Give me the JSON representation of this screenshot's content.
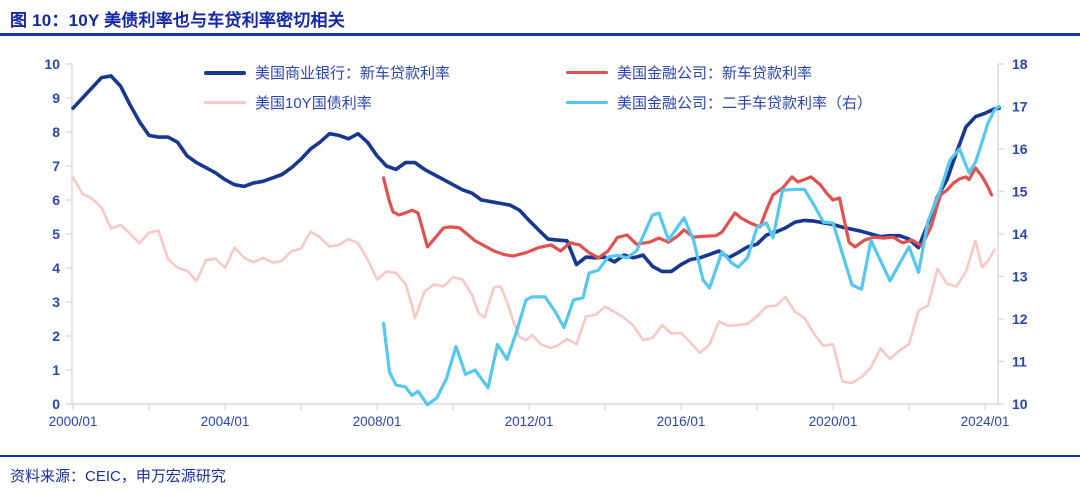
{
  "title": "图 10：10Y 美债利率也与车贷利率密切相关",
  "source": "资料来源：CEIC，申万宏源研究",
  "colors": {
    "title_text": "#1428a5",
    "rule": "#1634ad",
    "axis_line": "#d9d9d9",
    "axis_text": "#2946b0",
    "legend_text": "#2946b0",
    "series_bank_new_car": "#16388e",
    "series_finance_new_car": "#e05150",
    "series_treasury_10y": "#f8c9c4",
    "series_finance_used_car": "#55c8f2"
  },
  "chart_data": {
    "type": "line",
    "title": "图 10：10Y 美债利率也与车贷利率密切相关",
    "grid": false,
    "legend_position": "top",
    "x_axis": {
      "tick_labels": [
        "2000/01",
        "2004/01",
        "2008/01",
        "2012/01",
        "2016/01",
        "2020/01",
        "2024/01"
      ],
      "label_years": [
        2000,
        2004,
        2008,
        2012,
        2016,
        2020,
        2024
      ],
      "minor_tick_years": [
        2000,
        2002,
        2004,
        2006,
        2008,
        2010,
        2012,
        2014,
        2016,
        2018,
        2020,
        2022,
        2024
      ],
      "range": [
        2000.0,
        2024.42
      ]
    },
    "y_axis_left": {
      "min": 0,
      "max": 10,
      "step": 1,
      "ticks": [
        0,
        1,
        2,
        3,
        4,
        5,
        6,
        7,
        8,
        9,
        10
      ]
    },
    "y_axis_right": {
      "min": 10,
      "max": 18,
      "step": 1,
      "ticks": [
        10,
        11,
        12,
        13,
        14,
        15,
        16,
        17,
        18
      ]
    },
    "series": [
      {
        "name": "美国商业银行：新车贷款利率",
        "axis": "left",
        "color": "#16388e",
        "line_width": 3.6,
        "x": [
          2000.0,
          2000.25,
          2000.5,
          2000.75,
          2001.0,
          2001.25,
          2001.5,
          2001.75,
          2002.0,
          2002.25,
          2002.5,
          2002.75,
          2003.0,
          2003.25,
          2003.5,
          2003.75,
          2004.0,
          2004.25,
          2004.5,
          2004.75,
          2005.0,
          2005.25,
          2005.5,
          2005.75,
          2006.0,
          2006.25,
          2006.5,
          2006.75,
          2007.0,
          2007.25,
          2007.5,
          2007.75,
          2008.0,
          2008.25,
          2008.5,
          2008.75,
          2009.0,
          2009.25,
          2009.5,
          2009.75,
          2010.0,
          2010.25,
          2010.5,
          2010.75,
          2011.0,
          2011.25,
          2011.5,
          2011.75,
          2012.0,
          2012.25,
          2012.5,
          2012.75,
          2013.0,
          2013.25,
          2013.5,
          2013.75,
          2014.0,
          2014.25,
          2014.5,
          2014.75,
          2015.0,
          2015.25,
          2015.5,
          2015.75,
          2016.0,
          2016.25,
          2016.5,
          2016.75,
          2017.0,
          2017.25,
          2017.5,
          2017.75,
          2018.0,
          2018.25,
          2018.5,
          2018.75,
          2019.0,
          2019.25,
          2019.5,
          2019.75,
          2020.0,
          2020.25,
          2020.5,
          2020.75,
          2021.0,
          2021.25,
          2021.5,
          2021.75,
          2022.0,
          2022.25,
          2022.5,
          2022.75,
          2023.0,
          2023.25,
          2023.5,
          2023.75,
          2024.0,
          2024.25,
          2024.37
        ],
        "y": [
          8.7,
          9.0,
          9.3,
          9.6,
          9.65,
          9.35,
          8.8,
          8.3,
          7.9,
          7.85,
          7.85,
          7.7,
          7.3,
          7.1,
          6.95,
          6.8,
          6.6,
          6.45,
          6.4,
          6.5,
          6.55,
          6.65,
          6.75,
          6.95,
          7.2,
          7.5,
          7.7,
          7.95,
          7.9,
          7.8,
          7.95,
          7.7,
          7.3,
          7.0,
          6.9,
          7.1,
          7.1,
          6.9,
          6.75,
          6.6,
          6.45,
          6.3,
          6.2,
          6.0,
          5.95,
          5.9,
          5.85,
          5.7,
          5.4,
          5.12,
          4.85,
          4.82,
          4.8,
          4.1,
          4.32,
          4.3,
          4.32,
          4.18,
          4.38,
          4.3,
          4.38,
          4.05,
          3.9,
          3.9,
          4.1,
          4.25,
          4.3,
          4.4,
          4.5,
          4.3,
          4.45,
          4.62,
          4.7,
          4.97,
          5.06,
          5.18,
          5.35,
          5.4,
          5.38,
          5.33,
          5.28,
          5.2,
          5.14,
          5.08,
          5.0,
          4.92,
          4.95,
          4.95,
          4.85,
          4.6,
          5.3,
          6.1,
          6.6,
          7.4,
          8.15,
          8.45,
          8.55,
          8.68,
          8.7
        ]
      },
      {
        "name": "美国金融公司：新车贷款利率",
        "axis": "left",
        "color": "#e05150",
        "line_width": 3.2,
        "x": [
          2008.17,
          2008.33,
          2008.42,
          2008.58,
          2008.75,
          2008.92,
          2009.08,
          2009.33,
          2009.58,
          2009.75,
          2009.92,
          2010.17,
          2010.42,
          2010.58,
          2010.83,
          2011.08,
          2011.33,
          2011.58,
          2011.92,
          2012.25,
          2012.58,
          2012.83,
          2013.08,
          2013.33,
          2013.58,
          2013.83,
          2014.08,
          2014.33,
          2014.58,
          2014.83,
          2015.17,
          2015.42,
          2015.67,
          2015.92,
          2016.08,
          2016.33,
          2016.58,
          2016.92,
          2017.08,
          2017.42,
          2017.58,
          2017.83,
          2018.08,
          2018.25,
          2018.42,
          2018.67,
          2018.92,
          2019.08,
          2019.42,
          2019.67,
          2019.83,
          2020.0,
          2020.17,
          2020.42,
          2020.58,
          2020.83,
          2021.08,
          2021.33,
          2021.58,
          2021.83,
          2022.08,
          2022.33,
          2022.58,
          2022.83,
          2023.0,
          2023.17,
          2023.33,
          2023.5,
          2023.58,
          2023.75,
          2023.92,
          2024.08,
          2024.17
        ],
        "y": [
          6.65,
          5.95,
          5.65,
          5.56,
          5.62,
          5.7,
          5.62,
          4.62,
          4.95,
          5.18,
          5.21,
          5.18,
          4.95,
          4.8,
          4.65,
          4.5,
          4.4,
          4.35,
          4.45,
          4.6,
          4.68,
          4.5,
          4.74,
          4.68,
          4.45,
          4.3,
          4.5,
          4.9,
          4.97,
          4.7,
          4.76,
          4.88,
          4.76,
          4.95,
          5.12,
          4.91,
          4.93,
          4.95,
          5.06,
          5.62,
          5.47,
          5.32,
          5.21,
          5.71,
          6.15,
          6.35,
          6.68,
          6.53,
          6.68,
          6.44,
          6.21,
          6.0,
          6.06,
          4.76,
          4.62,
          4.82,
          4.91,
          4.88,
          4.91,
          4.74,
          4.82,
          4.65,
          5.21,
          6.15,
          6.29,
          6.5,
          6.62,
          6.68,
          6.6,
          6.94,
          6.7,
          6.38,
          6.15
        ]
      },
      {
        "name": "美国10Y国债利率",
        "axis": "left",
        "color": "#f8c9c4",
        "line_width": 2.6,
        "x": [
          2000.0,
          2000.25,
          2000.5,
          2000.75,
          2001.0,
          2001.25,
          2001.5,
          2001.75,
          2002.0,
          2002.25,
          2002.5,
          2002.75,
          2003.0,
          2003.25,
          2003.5,
          2003.75,
          2004.0,
          2004.25,
          2004.5,
          2004.75,
          2005.0,
          2005.25,
          2005.5,
          2005.75,
          2006.0,
          2006.25,
          2006.5,
          2006.75,
          2007.0,
          2007.25,
          2007.5,
          2007.75,
          2008.0,
          2008.25,
          2008.5,
          2008.75,
          2008.92,
          2009.0,
          2009.25,
          2009.5,
          2009.75,
          2010.0,
          2010.25,
          2010.5,
          2010.67,
          2010.83,
          2011.08,
          2011.25,
          2011.42,
          2011.58,
          2011.75,
          2011.92,
          2012.08,
          2012.33,
          2012.58,
          2012.75,
          2013.0,
          2013.25,
          2013.5,
          2013.75,
          2014.0,
          2014.25,
          2014.5,
          2014.75,
          2015.0,
          2015.25,
          2015.5,
          2015.75,
          2016.0,
          2016.25,
          2016.5,
          2016.75,
          2017.0,
          2017.25,
          2017.5,
          2017.75,
          2018.0,
          2018.25,
          2018.5,
          2018.75,
          2019.0,
          2019.25,
          2019.5,
          2019.75,
          2020.0,
          2020.25,
          2020.5,
          2020.75,
          2021.0,
          2021.25,
          2021.5,
          2021.75,
          2022.0,
          2022.25,
          2022.5,
          2022.75,
          2023.0,
          2023.25,
          2023.5,
          2023.75,
          2023.92,
          2024.08,
          2024.25
        ],
        "y": [
          6.66,
          6.18,
          6.04,
          5.78,
          5.16,
          5.27,
          5.01,
          4.73,
          5.04,
          5.1,
          4.26,
          4.01,
          3.92,
          3.62,
          4.23,
          4.27,
          4.01,
          4.6,
          4.3,
          4.17,
          4.3,
          4.16,
          4.21,
          4.49,
          4.57,
          5.07,
          4.9,
          4.63,
          4.68,
          4.85,
          4.73,
          4.26,
          3.66,
          3.89,
          3.86,
          3.53,
          2.9,
          2.52,
          3.31,
          3.52,
          3.46,
          3.73,
          3.66,
          3.21,
          2.68,
          2.54,
          3.44,
          3.46,
          3.0,
          2.47,
          1.97,
          1.88,
          2.03,
          1.74,
          1.65,
          1.72,
          1.91,
          1.76,
          2.58,
          2.62,
          2.86,
          2.71,
          2.54,
          2.3,
          1.88,
          1.94,
          2.32,
          2.07,
          2.09,
          1.81,
          1.5,
          1.76,
          2.43,
          2.3,
          2.32,
          2.36,
          2.58,
          2.87,
          2.89,
          3.15,
          2.71,
          2.53,
          2.06,
          1.71,
          1.76,
          0.66,
          0.62,
          0.79,
          1.08,
          1.64,
          1.32,
          1.58,
          1.76,
          2.75,
          2.9,
          3.98,
          3.53,
          3.46,
          3.9,
          4.8,
          4.02,
          4.21,
          4.54
        ]
      },
      {
        "name": "美国金融公司：二手车贷款利率（右）",
        "axis": "right",
        "color": "#55c8f2",
        "line_width": 3.2,
        "x": [
          2008.17,
          2008.33,
          2008.5,
          2008.75,
          2008.92,
          2009.08,
          2009.33,
          2009.58,
          2009.83,
          2010.08,
          2010.33,
          2010.58,
          2010.92,
          2011.17,
          2011.42,
          2011.67,
          2011.92,
          2012.08,
          2012.42,
          2012.67,
          2012.92,
          2013.17,
          2013.42,
          2013.58,
          2013.83,
          2014.08,
          2014.33,
          2014.58,
          2014.83,
          2015.25,
          2015.42,
          2015.67,
          2016.08,
          2016.33,
          2016.58,
          2016.75,
          2017.08,
          2017.33,
          2017.5,
          2017.75,
          2018.0,
          2018.25,
          2018.42,
          2018.67,
          2019.0,
          2019.25,
          2019.5,
          2019.75,
          2020.0,
          2020.5,
          2020.75,
          2021.0,
          2021.5,
          2021.75,
          2022.0,
          2022.25,
          2022.5,
          2022.83,
          2023.08,
          2023.33,
          2023.58,
          2023.75,
          2023.92,
          2024.08,
          2024.25,
          2024.37
        ],
        "y": [
          11.9,
          10.75,
          10.45,
          10.4,
          10.2,
          10.3,
          9.98,
          10.15,
          10.6,
          11.35,
          10.7,
          10.8,
          10.38,
          11.4,
          11.05,
          11.7,
          12.45,
          12.52,
          12.52,
          12.2,
          11.8,
          12.45,
          12.5,
          13.08,
          13.15,
          13.46,
          13.5,
          13.44,
          13.6,
          14.45,
          14.49,
          13.86,
          14.38,
          13.86,
          12.92,
          12.73,
          13.58,
          13.32,
          13.22,
          13.44,
          14.16,
          14.26,
          13.91,
          15.03,
          15.05,
          15.05,
          14.68,
          14.28,
          14.26,
          12.8,
          12.7,
          13.85,
          12.9,
          13.3,
          13.7,
          13.1,
          14.3,
          15.04,
          15.74,
          16.0,
          15.44,
          15.69,
          16.16,
          16.61,
          16.92,
          17.0
        ]
      }
    ]
  },
  "legend": {
    "items": [
      {
        "label": "美国商业银行：新车贷款利率",
        "series": 0
      },
      {
        "label": "美国金融公司：新车贷款利率",
        "series": 1
      },
      {
        "label": "美国10Y国债利率",
        "series": 2
      },
      {
        "label": "美国金融公司：二手车贷款利率（右）",
        "series": 3
      }
    ]
  }
}
